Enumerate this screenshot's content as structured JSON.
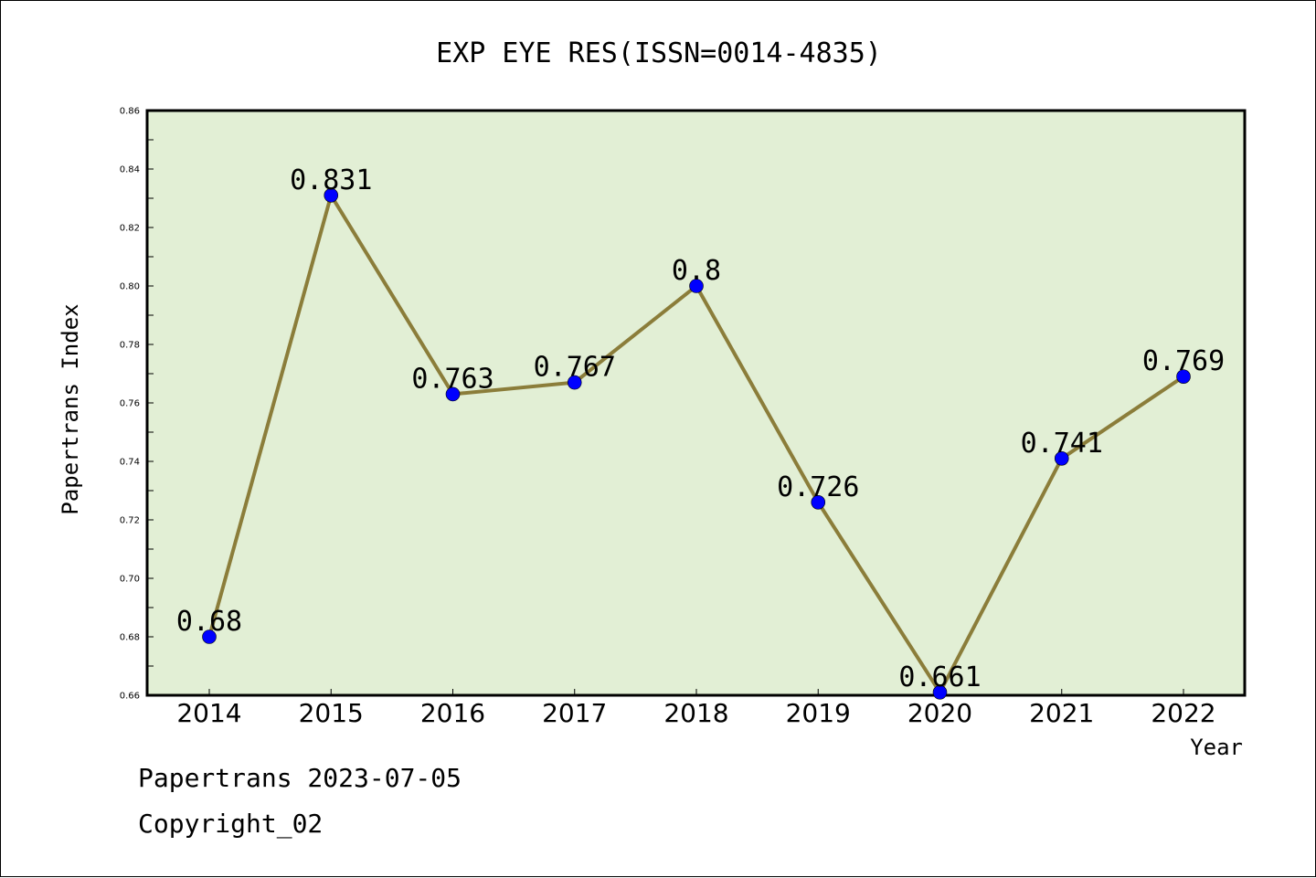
{
  "chart_data": {
    "type": "line",
    "title": "EXP EYE RES(ISSN=0014-4835)",
    "xlabel": "Year",
    "ylabel": "Papertrans Index",
    "categories": [
      "2014",
      "2015",
      "2016",
      "2017",
      "2018",
      "2019",
      "2020",
      "2021",
      "2022"
    ],
    "series": [
      {
        "values": [
          0.68,
          0.831,
          0.763,
          0.767,
          0.8,
          0.726,
          0.661,
          0.741,
          0.769
        ],
        "labels": [
          "0.68",
          "0.831",
          "0.763",
          "0.767",
          "0.8",
          "0.726",
          "0.661",
          "0.741",
          "0.769"
        ],
        "line_color": "#8b7d3a",
        "marker_color": "#0000ff"
      }
    ],
    "ylim": [
      0.66,
      0.86
    ],
    "yticks": [
      "0.66",
      "0.68",
      "0.70",
      "0.72",
      "0.74",
      "0.76",
      "0.78",
      "0.80",
      "0.82",
      "0.84",
      "0.86"
    ],
    "plot_background": "#e2efd5",
    "grid": false,
    "legend": "none"
  },
  "footer": {
    "line1": "Papertrans 2023-07-05",
    "line2": "Copyright_02"
  }
}
